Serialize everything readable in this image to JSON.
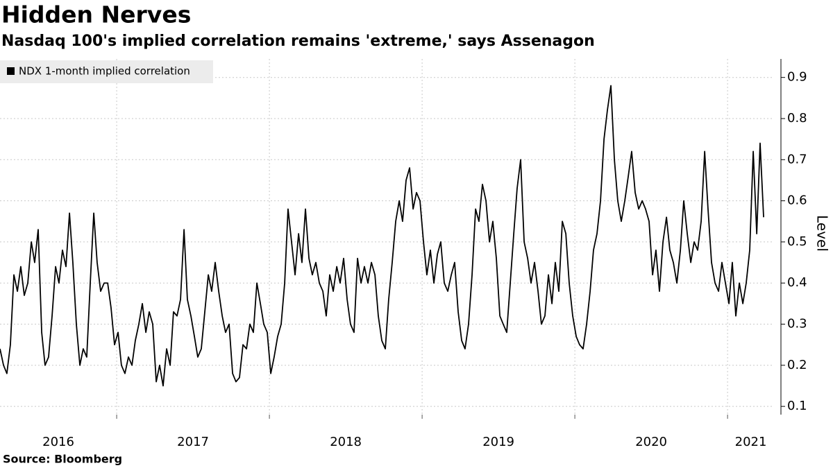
{
  "chart_data": {
    "type": "line",
    "title": "Hidden Nerves",
    "subtitle": "Nasdaq 100's implied correlation remains 'extreme,' says Assenagon",
    "source": "Source: Bloomberg",
    "ylabel": "Level",
    "legend": "top-left",
    "grid": true,
    "xlim": [
      2016.236,
      2021.304
    ],
    "xticks": [
      2016,
      2017,
      2018,
      2019,
      2020,
      2021
    ],
    "ylim": [
      0.08,
      0.945
    ],
    "yticks": [
      0.1,
      0.2,
      0.3,
      0.4,
      0.5,
      0.6,
      0.7,
      0.8,
      0.9
    ],
    "x": [
      2016.236,
      2016.259,
      2016.281,
      2016.304,
      2016.327,
      2016.35,
      2016.372,
      2016.395,
      2016.418,
      2016.441,
      2016.463,
      2016.486,
      2016.509,
      2016.531,
      2016.554,
      2016.577,
      2016.6,
      2016.622,
      2016.645,
      2016.668,
      2016.691,
      2016.713,
      2016.736,
      2016.759,
      2016.781,
      2016.804,
      2016.827,
      2016.85,
      2016.872,
      2016.895,
      2016.918,
      2016.941,
      2016.963,
      2016.986,
      2017.009,
      2017.031,
      2017.054,
      2017.077,
      2017.1,
      2017.122,
      2017.145,
      2017.168,
      2017.191,
      2017.213,
      2017.236,
      2017.259,
      2017.281,
      2017.304,
      2017.327,
      2017.35,
      2017.372,
      2017.395,
      2017.418,
      2017.441,
      2017.463,
      2017.486,
      2017.509,
      2017.531,
      2017.554,
      2017.577,
      2017.6,
      2017.622,
      2017.645,
      2017.668,
      2017.691,
      2017.713,
      2017.736,
      2017.759,
      2017.781,
      2017.804,
      2017.827,
      2017.85,
      2017.872,
      2017.895,
      2017.918,
      2017.941,
      2017.963,
      2017.986,
      2018.009,
      2018.031,
      2018.054,
      2018.077,
      2018.1,
      2018.122,
      2018.145,
      2018.168,
      2018.191,
      2018.213,
      2018.236,
      2018.259,
      2018.281,
      2018.304,
      2018.327,
      2018.35,
      2018.372,
      2018.395,
      2018.418,
      2018.441,
      2018.463,
      2018.486,
      2018.509,
      2018.531,
      2018.554,
      2018.577,
      2018.6,
      2018.622,
      2018.645,
      2018.668,
      2018.691,
      2018.713,
      2018.736,
      2018.759,
      2018.781,
      2018.804,
      2018.827,
      2018.85,
      2018.872,
      2018.895,
      2018.918,
      2018.941,
      2018.963,
      2018.986,
      2019.009,
      2019.031,
      2019.054,
      2019.077,
      2019.1,
      2019.122,
      2019.145,
      2019.168,
      2019.191,
      2019.213,
      2019.236,
      2019.259,
      2019.281,
      2019.304,
      2019.327,
      2019.35,
      2019.372,
      2019.395,
      2019.418,
      2019.441,
      2019.463,
      2019.486,
      2019.509,
      2019.531,
      2019.554,
      2019.577,
      2019.6,
      2019.622,
      2019.645,
      2019.668,
      2019.691,
      2019.713,
      2019.736,
      2019.759,
      2019.781,
      2019.804,
      2019.827,
      2019.85,
      2019.872,
      2019.895,
      2019.918,
      2019.941,
      2019.963,
      2019.986,
      2020.009,
      2020.031,
      2020.054,
      2020.077,
      2020.1,
      2020.122,
      2020.145,
      2020.168,
      2020.191,
      2020.213,
      2020.236,
      2020.259,
      2020.281,
      2020.304,
      2020.327,
      2020.35,
      2020.372,
      2020.395,
      2020.418,
      2020.441,
      2020.463,
      2020.486,
      2020.509,
      2020.531,
      2020.554,
      2020.577,
      2020.6,
      2020.622,
      2020.645,
      2020.668,
      2020.691,
      2020.713,
      2020.736,
      2020.759,
      2020.781,
      2020.804,
      2020.827,
      2020.85,
      2020.872,
      2020.895,
      2020.918,
      2020.941,
      2020.963,
      2020.986,
      2021.009,
      2021.031,
      2021.054,
      2021.077,
      2021.1,
      2021.122,
      2021.145,
      2021.168,
      2021.191,
      2021.213,
      2021.236
    ],
    "series": [
      {
        "name": "NDX 1-month implied correlation",
        "color": "#000000",
        "values": [
          0.24,
          0.2,
          0.18,
          0.25,
          0.42,
          0.38,
          0.44,
          0.37,
          0.4,
          0.5,
          0.45,
          0.53,
          0.28,
          0.2,
          0.22,
          0.32,
          0.44,
          0.4,
          0.48,
          0.44,
          0.57,
          0.45,
          0.3,
          0.2,
          0.24,
          0.22,
          0.4,
          0.57,
          0.45,
          0.38,
          0.4,
          0.4,
          0.34,
          0.25,
          0.28,
          0.2,
          0.18,
          0.22,
          0.2,
          0.26,
          0.3,
          0.35,
          0.28,
          0.33,
          0.3,
          0.16,
          0.2,
          0.15,
          0.24,
          0.2,
          0.33,
          0.32,
          0.36,
          0.53,
          0.36,
          0.32,
          0.27,
          0.22,
          0.24,
          0.33,
          0.42,
          0.38,
          0.45,
          0.38,
          0.32,
          0.28,
          0.3,
          0.18,
          0.16,
          0.17,
          0.25,
          0.24,
          0.3,
          0.28,
          0.4,
          0.35,
          0.3,
          0.28,
          0.18,
          0.22,
          0.27,
          0.3,
          0.4,
          0.58,
          0.5,
          0.42,
          0.52,
          0.45,
          0.58,
          0.46,
          0.42,
          0.45,
          0.4,
          0.38,
          0.32,
          0.42,
          0.38,
          0.44,
          0.4,
          0.46,
          0.36,
          0.3,
          0.28,
          0.46,
          0.4,
          0.44,
          0.4,
          0.45,
          0.42,
          0.32,
          0.26,
          0.24,
          0.36,
          0.45,
          0.55,
          0.6,
          0.55,
          0.65,
          0.68,
          0.58,
          0.62,
          0.6,
          0.5,
          0.42,
          0.48,
          0.4,
          0.47,
          0.5,
          0.4,
          0.38,
          0.42,
          0.45,
          0.33,
          0.26,
          0.24,
          0.3,
          0.42,
          0.58,
          0.55,
          0.64,
          0.6,
          0.5,
          0.55,
          0.46,
          0.32,
          0.3,
          0.28,
          0.4,
          0.52,
          0.63,
          0.7,
          0.5,
          0.46,
          0.4,
          0.45,
          0.38,
          0.3,
          0.32,
          0.42,
          0.35,
          0.45,
          0.38,
          0.55,
          0.52,
          0.4,
          0.32,
          0.27,
          0.25,
          0.24,
          0.3,
          0.38,
          0.48,
          0.52,
          0.6,
          0.75,
          0.82,
          0.88,
          0.7,
          0.6,
          0.55,
          0.6,
          0.66,
          0.72,
          0.62,
          0.58,
          0.6,
          0.58,
          0.55,
          0.42,
          0.48,
          0.38,
          0.5,
          0.56,
          0.48,
          0.45,
          0.4,
          0.48,
          0.6,
          0.52,
          0.45,
          0.5,
          0.48,
          0.55,
          0.72,
          0.58,
          0.45,
          0.4,
          0.38,
          0.45,
          0.4,
          0.35,
          0.45,
          0.32,
          0.4,
          0.35,
          0.4,
          0.48,
          0.72,
          0.52,
          0.74,
          0.56
        ]
      }
    ]
  }
}
